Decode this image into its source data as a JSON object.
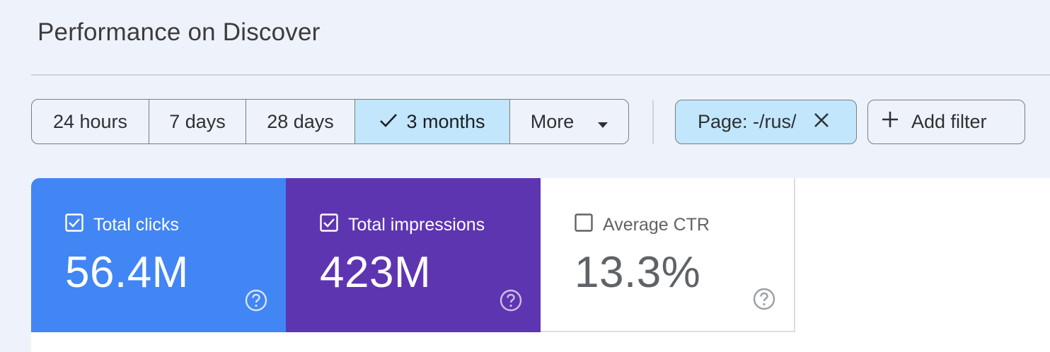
{
  "header": {
    "title": "Performance on Discover"
  },
  "date_range": {
    "options": [
      {
        "label": "24 hours",
        "selected": false
      },
      {
        "label": "7 days",
        "selected": false
      },
      {
        "label": "28 days",
        "selected": false
      },
      {
        "label": "3 months",
        "selected": true
      },
      {
        "label": "More",
        "selected": false
      }
    ]
  },
  "filters": {
    "active_filter_label": "Page: -/rus/",
    "add_filter_label": "Add filter"
  },
  "metrics": {
    "clicks": {
      "label": "Total clicks",
      "value": "56.4M",
      "checked": true,
      "color": "#4285f4"
    },
    "impressions": {
      "label": "Total impressions",
      "value": "423M",
      "checked": true,
      "color": "#5e35b1"
    },
    "ctr": {
      "label": "Average CTR",
      "value": "13.3%",
      "checked": false,
      "color": "#ffffff"
    }
  },
  "colors": {
    "selected_chip": "#c2e6fb",
    "background": "#eef2fa"
  },
  "icons": [
    "check-icon",
    "dropdown-arrow-icon",
    "close-icon",
    "plus-icon",
    "checkbox-icon",
    "help-icon"
  ]
}
